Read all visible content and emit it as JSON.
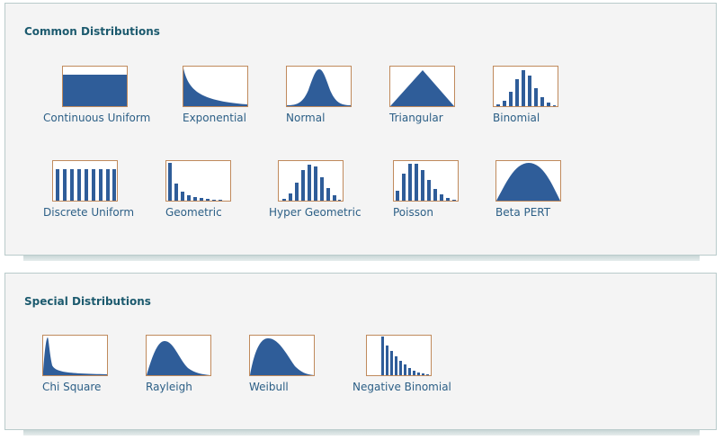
{
  "colors": {
    "fill": "#2f5d99",
    "frame": "#c08a5c",
    "title": "#1c5a6e",
    "label": "#2c5f86"
  },
  "sections": {
    "common": {
      "title": "Common Distributions",
      "items": [
        {
          "label": "Continuous Uniform",
          "icon": "continuous-uniform-icon"
        },
        {
          "label": "Exponential",
          "icon": "exponential-icon"
        },
        {
          "label": "Normal",
          "icon": "normal-icon"
        },
        {
          "label": "Triangular",
          "icon": "triangular-icon"
        },
        {
          "label": "Binomial",
          "icon": "binomial-icon"
        },
        {
          "label": "Discrete Uniform",
          "icon": "discrete-uniform-icon"
        },
        {
          "label": "Geometric",
          "icon": "geometric-icon"
        },
        {
          "label": "Hyper Geometric",
          "icon": "hyper-geometric-icon"
        },
        {
          "label": "Poisson",
          "icon": "poisson-icon"
        },
        {
          "label": "Beta PERT",
          "icon": "beta-pert-icon"
        }
      ]
    },
    "special": {
      "title": "Special Distributions",
      "items": [
        {
          "label": "Chi Square",
          "icon": "chi-square-icon"
        },
        {
          "label": "Rayleigh",
          "icon": "rayleigh-icon"
        },
        {
          "label": "Weibull",
          "icon": "weibull-icon"
        },
        {
          "label": "Negative Binomial",
          "icon": "negative-binomial-icon"
        }
      ]
    }
  }
}
